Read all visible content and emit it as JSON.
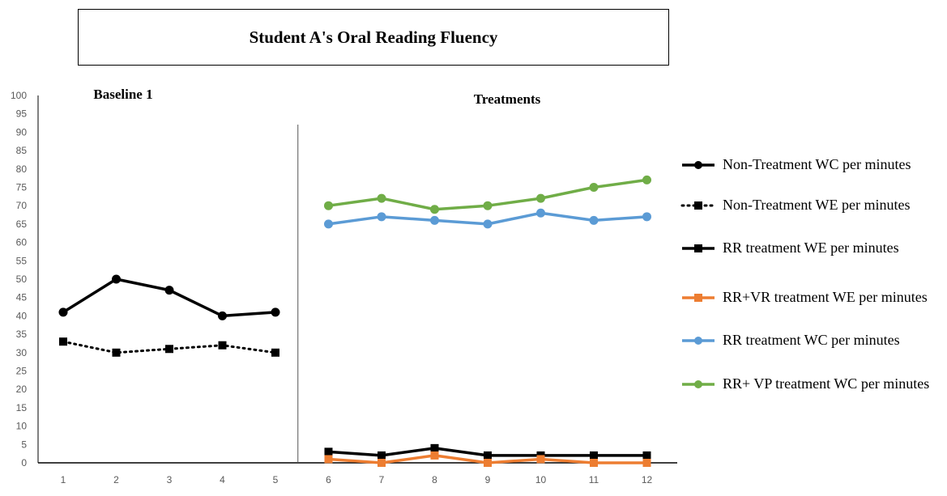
{
  "chart_data": {
    "type": "line",
    "title": "Student A's Oral Reading Fluency",
    "phase_labels": [
      "Baseline 1",
      "Treatments"
    ],
    "x": [
      1,
      2,
      3,
      4,
      5,
      6,
      7,
      8,
      9,
      10,
      11,
      12
    ],
    "ylim": [
      0,
      100
    ],
    "yticks": [
      0,
      5,
      10,
      15,
      20,
      25,
      30,
      35,
      40,
      45,
      50,
      55,
      60,
      65,
      70,
      75,
      80,
      85,
      90,
      95,
      100
    ],
    "phase_change_after_x": 5.5,
    "grid": false,
    "legend_position": "right",
    "series": [
      {
        "name": "Non-Treatment WC per minutes",
        "color": "#000000",
        "line": "solid",
        "marker": "circle",
        "x": [
          1,
          2,
          3,
          4,
          5
        ],
        "values": [
          41,
          50,
          47,
          40,
          41
        ]
      },
      {
        "name": "Non-Treatment WE per minutes",
        "color": "#000000",
        "line": "dotted",
        "marker": "square",
        "x": [
          1,
          2,
          3,
          4,
          5
        ],
        "values": [
          33,
          30,
          31,
          32,
          30
        ]
      },
      {
        "name": "RR treatment WE per minutes",
        "color": "#000000",
        "line": "solid",
        "marker": "square",
        "x": [
          6,
          7,
          8,
          9,
          10,
          11,
          12
        ],
        "values": [
          3,
          2,
          4,
          2,
          2,
          2,
          2
        ]
      },
      {
        "name": "RR+VR treatment WE per minutes",
        "color": "#ED7D31",
        "line": "solid",
        "marker": "square",
        "x": [
          6,
          7,
          8,
          9,
          10,
          11,
          12
        ],
        "values": [
          1,
          0,
          2,
          0,
          1,
          0,
          0
        ]
      },
      {
        "name": "RR treatment WC per minutes",
        "color": "#5B9BD5",
        "line": "solid",
        "marker": "circle",
        "x": [
          6,
          7,
          8,
          9,
          10,
          11,
          12
        ],
        "values": [
          65,
          67,
          66,
          65,
          68,
          66,
          67
        ]
      },
      {
        "name": "RR+ VP treatment WC per minutes",
        "color": "#70AD47",
        "line": "solid",
        "marker": "circle",
        "x": [
          6,
          7,
          8,
          9,
          10,
          11,
          12
        ],
        "values": [
          70,
          72,
          69,
          70,
          72,
          75,
          77
        ]
      }
    ]
  }
}
